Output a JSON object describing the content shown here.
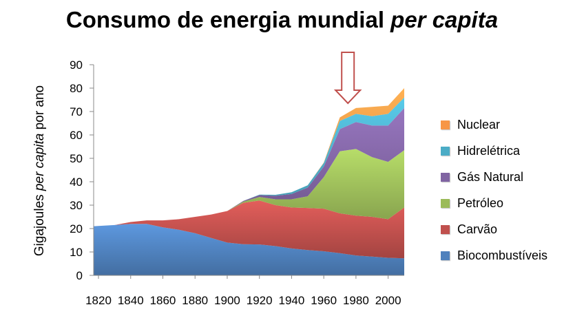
{
  "title": {
    "main": "Consumo de energia mundial",
    "emphasis": "per capita"
  },
  "y_axis_label": {
    "before": "Gigajoules",
    "emphasis": "per capita",
    "after": "por ano"
  },
  "colors": {
    "Biocombustíveis": "#4f81bd",
    "Carvão": "#c0504d",
    "Petróleo": "#9bbb59",
    "Gás Natural": "#8064a2",
    "Hidrelétrica": "#4bacc6",
    "Nuclear": "#f79646",
    "arrow": "#c0504d"
  },
  "chart_data": {
    "type": "area",
    "stacked": true,
    "title": "Consumo de energia mundial per capita",
    "xlabel": "",
    "ylabel": "Gigajoules per capita por ano",
    "xlim": [
      1817,
      2010
    ],
    "ylim": [
      0,
      90
    ],
    "yticks": [
      0,
      10,
      20,
      30,
      40,
      50,
      60,
      70,
      80,
      90
    ],
    "xticks": [
      1820,
      1840,
      1860,
      1880,
      1900,
      1920,
      1940,
      1960,
      1980,
      2000
    ],
    "grid": false,
    "legend_position": "right",
    "annotation": {
      "type": "arrow-down",
      "x": 1975,
      "label": ""
    },
    "x": [
      1817,
      1830,
      1840,
      1850,
      1860,
      1870,
      1880,
      1890,
      1900,
      1910,
      1920,
      1930,
      1940,
      1950,
      1960,
      1970,
      1980,
      1990,
      2000,
      2010
    ],
    "series": [
      {
        "name": "Biocombustíveis",
        "values": [
          21,
          21.5,
          22,
          22,
          20.5,
          19.5,
          18,
          16,
          14,
          13.3,
          13.2,
          12.5,
          11.5,
          10.8,
          10.3,
          9.5,
          8.5,
          8.0,
          7.5,
          7.3
        ]
      },
      {
        "name": "Carvão",
        "values": [
          0,
          0,
          0.8,
          1.5,
          3,
          4.5,
          7,
          10,
          13.5,
          17.7,
          18.8,
          17.5,
          17.5,
          18,
          18.2,
          17,
          17,
          17,
          16.5,
          21.7
        ]
      },
      {
        "name": "Petróleo",
        "values": [
          0,
          0,
          0,
          0,
          0,
          0,
          0,
          0,
          0,
          0.5,
          1.5,
          2.5,
          3.5,
          5,
          13.5,
          26.5,
          28.5,
          25.5,
          24.5,
          24.5
        ]
      },
      {
        "name": "Gás Natural",
        "values": [
          0,
          0,
          0,
          0,
          0,
          0,
          0,
          0,
          0,
          0.3,
          0.8,
          1.5,
          2.3,
          3.7,
          4.5,
          9.5,
          11.5,
          13.5,
          15.5,
          18
        ]
      },
      {
        "name": "Hidrelétrica",
        "values": [
          0,
          0,
          0,
          0,
          0,
          0,
          0,
          0,
          0,
          0,
          0.2,
          0.4,
          0.7,
          1.0,
          1.5,
          3.5,
          3.5,
          4,
          5,
          4.5
        ]
      },
      {
        "name": "Nuclear",
        "values": [
          0,
          0,
          0,
          0,
          0,
          0,
          0,
          0,
          0,
          0,
          0,
          0,
          0,
          0,
          0.2,
          1.5,
          2.5,
          4,
          3.5,
          4
        ]
      }
    ]
  }
}
